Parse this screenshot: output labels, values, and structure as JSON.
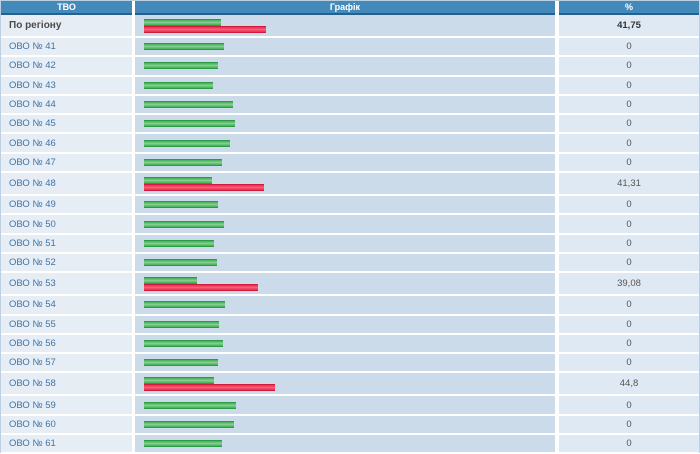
{
  "table": {
    "headers": {
      "tvo": "ТВО",
      "graph": "Графік",
      "percent": "%"
    },
    "rows": [
      {
        "label": "По регіону",
        "region": true,
        "green_w": 77,
        "red_w": 122,
        "pct": "41,75"
      },
      {
        "label": "ОВО № 41",
        "region": false,
        "green_w": 80,
        "red_w": null,
        "pct": "0"
      },
      {
        "label": "ОВО № 42",
        "region": false,
        "green_w": 74,
        "red_w": null,
        "pct": "0"
      },
      {
        "label": "ОВО № 43",
        "region": false,
        "green_w": 69,
        "red_w": null,
        "pct": "0"
      },
      {
        "label": "ОВО № 44",
        "region": false,
        "green_w": 89,
        "red_w": null,
        "pct": "0"
      },
      {
        "label": "ОВО № 45",
        "region": false,
        "green_w": 91,
        "red_w": null,
        "pct": "0"
      },
      {
        "label": "ОВО № 46",
        "region": false,
        "green_w": 86,
        "red_w": null,
        "pct": "0"
      },
      {
        "label": "ОВО № 47",
        "region": false,
        "green_w": 78,
        "red_w": null,
        "pct": "0"
      },
      {
        "label": "ОВО № 48",
        "region": false,
        "green_w": 68,
        "red_w": 120,
        "pct": "41,31"
      },
      {
        "label": "ОВО № 49",
        "region": false,
        "green_w": 74,
        "red_w": null,
        "pct": "0"
      },
      {
        "label": "ОВО № 50",
        "region": false,
        "green_w": 80,
        "red_w": null,
        "pct": "0"
      },
      {
        "label": "ОВО № 51",
        "region": false,
        "green_w": 70,
        "red_w": null,
        "pct": "0"
      },
      {
        "label": "ОВО № 52",
        "region": false,
        "green_w": 73,
        "red_w": null,
        "pct": "0"
      },
      {
        "label": "ОВО № 53",
        "region": false,
        "green_w": 53,
        "red_w": 114,
        "pct": "39,08"
      },
      {
        "label": "ОВО № 54",
        "region": false,
        "green_w": 81,
        "red_w": null,
        "pct": "0"
      },
      {
        "label": "ОВО № 55",
        "region": false,
        "green_w": 75,
        "red_w": null,
        "pct": "0"
      },
      {
        "label": "ОВО № 56",
        "region": false,
        "green_w": 79,
        "red_w": null,
        "pct": "0"
      },
      {
        "label": "ОВО № 57",
        "region": false,
        "green_w": 74,
        "red_w": null,
        "pct": "0"
      },
      {
        "label": "ОВО № 58",
        "region": false,
        "green_w": 70,
        "red_w": 131,
        "pct": "44,8"
      },
      {
        "label": "ОВО № 59",
        "region": false,
        "green_w": 92,
        "red_w": null,
        "pct": "0"
      },
      {
        "label": "ОВО № 60",
        "region": false,
        "green_w": 90,
        "red_w": null,
        "pct": "0"
      },
      {
        "label": "ОВО № 61",
        "region": false,
        "green_w": 78,
        "red_w": null,
        "pct": "0"
      }
    ]
  },
  "colors": {
    "header_bg": "#4389ba",
    "header_border": "#26608f",
    "green_bar": "#4eb660",
    "red_bar": "#ee3557",
    "tvo_cell_bg": "#e7edf4",
    "graph_cell_bg": "#ccdbea",
    "percent_cell_bg": "#dfe9f3",
    "link_color": "#3e74a8"
  },
  "chart_data": {
    "type": "bar",
    "orientation": "horizontal",
    "categories": [
      "По регіону",
      "ОВО № 41",
      "ОВО № 42",
      "ОВО № 43",
      "ОВО № 44",
      "ОВО № 45",
      "ОВО № 46",
      "ОВО № 47",
      "ОВО № 48",
      "ОВО № 49",
      "ОВО № 50",
      "ОВО № 51",
      "ОВО № 52",
      "ОВО № 53",
      "ОВО № 54",
      "ОВО № 55",
      "ОВО № 56",
      "ОВО № 57",
      "ОВО № 58",
      "ОВО № 59",
      "ОВО № 60",
      "ОВО № 61"
    ],
    "series": [
      {
        "name": "green",
        "values": [
          26.4,
          27.4,
          25.3,
          23.6,
          30.5,
          31.2,
          29.5,
          26.7,
          23.3,
          25.3,
          27.4,
          24.0,
          25.0,
          18.2,
          27.7,
          25.7,
          27.1,
          25.3,
          24.0,
          31.5,
          30.8,
          26.7
        ]
      },
      {
        "name": "red",
        "values": [
          41.75,
          0,
          0,
          0,
          0,
          0,
          0,
          0,
          41.31,
          0,
          0,
          0,
          0,
          39.08,
          0,
          0,
          0,
          0,
          44.8,
          0,
          0,
          0
        ]
      }
    ],
    "title": "",
    "xlabel": "%",
    "ylabel": "ТВО",
    "xlim": [
      0,
      100
    ],
    "grid": false,
    "legend": false
  }
}
